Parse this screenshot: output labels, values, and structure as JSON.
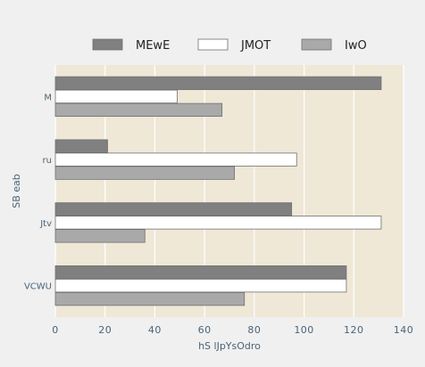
{
  "chart_data": {
    "type": "bar",
    "orientation": "horizontal",
    "title": "",
    "xlabel": "hS lJpYsOdro",
    "ylabel": "SB eab",
    "categories": [
      "M",
      "ru",
      "Jtv",
      "VCWU"
    ],
    "series": [
      {
        "name": "MEwE",
        "values": [
          131,
          21,
          95,
          117
        ],
        "color": "#808080"
      },
      {
        "name": "JMOT",
        "values": [
          49,
          97,
          131,
          117
        ],
        "color": "#ffffff"
      },
      {
        "name": "IwO",
        "values": [
          67,
          72,
          36,
          76
        ],
        "color": "#a9a9a9"
      }
    ],
    "xlim": [
      0,
      140
    ],
    "xticks": [
      "0",
      "20",
      "40",
      "60",
      "80",
      "100",
      "120",
      "140"
    ],
    "grid": true,
    "legend_position": "top",
    "plot_background": "#efe8d7",
    "page_background": "#f0f0f0",
    "grid_color": "#ffffff",
    "bar_edge_color": "#707070",
    "label_color": "#4a6478"
  }
}
